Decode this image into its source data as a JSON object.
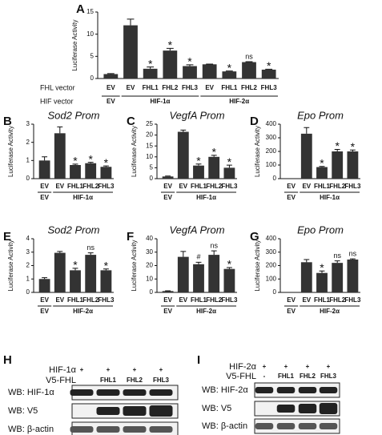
{
  "chart_data": [
    {
      "type": "bar",
      "panel": "A",
      "ylabel": "Luciferase Activity",
      "row_labels": [
        "FHL vector",
        "HIF vector"
      ],
      "categories": [
        "EV",
        "EV",
        "FHL1",
        "FHL2",
        "FHL3",
        "EV",
        "FHL1",
        "FHL2",
        "FHL3"
      ],
      "values": [
        1.0,
        12.0,
        2.2,
        6.3,
        2.8,
        3.2,
        1.6,
        3.7,
        2.0
      ],
      "errors": [
        0.1,
        1.4,
        0.4,
        0.5,
        0.3,
        0.05,
        0.1,
        0.1,
        0.1
      ],
      "annotations": [
        null,
        null,
        "*",
        "*",
        "*",
        null,
        "*",
        "ns",
        "*"
      ],
      "groups": [
        {
          "label": "EV",
          "count": 1
        },
        {
          "label": "HIF-1α",
          "count": 4
        },
        {
          "label": "HIF-2α",
          "count": 4
        }
      ],
      "ylim": [
        0,
        15
      ],
      "yticks": [
        0,
        5,
        10,
        15
      ],
      "color": "#333333"
    },
    {
      "type": "bar",
      "panel": "B",
      "title": "Sod2 Prom",
      "ylabel": "Luciferase Activity",
      "categories": [
        "EV",
        "EV",
        "FHL1",
        "FHL2",
        "FHL3"
      ],
      "values": [
        1.0,
        2.5,
        0.75,
        0.85,
        0.65
      ],
      "errors": [
        0.2,
        0.35,
        0.05,
        0.05,
        0.05
      ],
      "annotations": [
        null,
        null,
        "*",
        "*",
        "*"
      ],
      "groups": [
        {
          "label": "EV",
          "count": 1
        },
        {
          "label": "HIF-1α",
          "count": 4
        }
      ],
      "ylim": [
        0,
        3
      ],
      "yticks": [
        0,
        1,
        2,
        3
      ],
      "color": "#333333"
    },
    {
      "type": "bar",
      "panel": "C",
      "title": "VegfA Prom",
      "ylabel": "Luciferase Activity",
      "categories": [
        "EV",
        "EV",
        "FHL1",
        "FHL2",
        "FHL3"
      ],
      "values": [
        1.0,
        21.5,
        6.0,
        10.0,
        5.0
      ],
      "errors": [
        0.2,
        0.8,
        0.7,
        0.7,
        1.2
      ],
      "annotations": [
        null,
        null,
        "*",
        "*",
        "*"
      ],
      "groups": [
        {
          "label": "EV",
          "count": 1
        },
        {
          "label": "HIF-1α",
          "count": 4
        }
      ],
      "ylim": [
        0,
        25
      ],
      "yticks": [
        0,
        5,
        10,
        15,
        20,
        25
      ],
      "color": "#333333"
    },
    {
      "type": "bar",
      "panel": "D",
      "title": "Epo Prom",
      "ylabel": "Luciferase Activity",
      "categories": [
        "EV",
        "EV",
        "FHL1",
        "FHL2",
        "FHL3"
      ],
      "values": [
        0,
        330,
        85,
        200,
        200
      ],
      "errors": [
        0,
        45,
        5,
        15,
        10
      ],
      "annotations": [
        null,
        null,
        "*",
        "*",
        "*"
      ],
      "groups": [
        {
          "label": "EV",
          "count": 1
        },
        {
          "label": "HIF-1α",
          "count": 4
        }
      ],
      "ylim": [
        0,
        400
      ],
      "yticks": [
        0,
        100,
        200,
        300,
        400
      ],
      "color": "#333333"
    },
    {
      "type": "bar",
      "panel": "E",
      "title": "Sod2 Prom",
      "ylabel": "Luciferase Activity",
      "categories": [
        "EV",
        "EV",
        "FHL1",
        "FHL2",
        "FHL3"
      ],
      "values": [
        1.0,
        2.95,
        1.65,
        2.8,
        1.65
      ],
      "errors": [
        0.1,
        0.1,
        0.15,
        0.15,
        0.1
      ],
      "annotations": [
        null,
        null,
        "*",
        "ns",
        "*"
      ],
      "groups": [
        {
          "label": "EV",
          "count": 1
        },
        {
          "label": "HIF-2α",
          "count": 4
        }
      ],
      "ylim": [
        0,
        4
      ],
      "yticks": [
        0,
        1,
        2,
        3,
        4
      ],
      "color": "#333333"
    },
    {
      "type": "bar",
      "panel": "F",
      "title": "VegfA Prom",
      "ylabel": "Luciferase Activity",
      "categories": [
        "EV",
        "EV",
        "FHL1",
        "FHL2",
        "FHL3"
      ],
      "values": [
        1.0,
        26.5,
        21.0,
        28.0,
        17.5
      ],
      "errors": [
        0.2,
        4.0,
        1.5,
        3.0,
        1.0
      ],
      "annotations": [
        null,
        null,
        "#",
        "ns",
        "*"
      ],
      "groups": [
        {
          "label": "EV",
          "count": 1
        },
        {
          "label": "HIF-2α",
          "count": 4
        }
      ],
      "ylim": [
        0,
        40
      ],
      "yticks": [
        0,
        10,
        20,
        30,
        40
      ],
      "color": "#333333"
    },
    {
      "type": "bar",
      "panel": "G",
      "title": "Epo Prom",
      "ylabel": "Luciferase Activity",
      "categories": [
        "EV",
        "EV",
        "FHL1",
        "FHL2",
        "FHL3"
      ],
      "values": [
        0,
        225,
        145,
        220,
        245
      ],
      "errors": [
        0,
        20,
        15,
        15,
        5
      ],
      "annotations": [
        null,
        null,
        "*",
        "ns",
        "ns"
      ],
      "groups": [
        {
          "label": "EV",
          "count": 1
        },
        {
          "label": "HIF-2α",
          "count": 4
        }
      ],
      "ylim": [
        0,
        400
      ],
      "yticks": [
        0,
        100,
        200,
        300,
        400
      ],
      "color": "#333333"
    }
  ],
  "blots": [
    {
      "panel": "H",
      "header_rows": [
        {
          "label": "HIF-1α",
          "cells": [
            "+",
            "+",
            "+",
            "+"
          ]
        },
        {
          "label": "V5-FHL",
          "cells": [
            null,
            "FHL1",
            "FHL2",
            "FHL3"
          ]
        }
      ],
      "rows": [
        "WB: HIF-1α",
        "WB: V5",
        "WB: β-actin"
      ]
    },
    {
      "panel": "I",
      "header_rows": [
        {
          "label": "HIF-2α",
          "cells": [
            "+",
            "+",
            "+",
            "+"
          ]
        },
        {
          "label": "V5-FHL",
          "cells": [
            "-",
            "FHL1",
            "FHL2",
            "FHL3"
          ]
        }
      ],
      "rows": [
        "WB: HIF-2α",
        "WB: V5",
        "WB: β-actin"
      ]
    }
  ]
}
